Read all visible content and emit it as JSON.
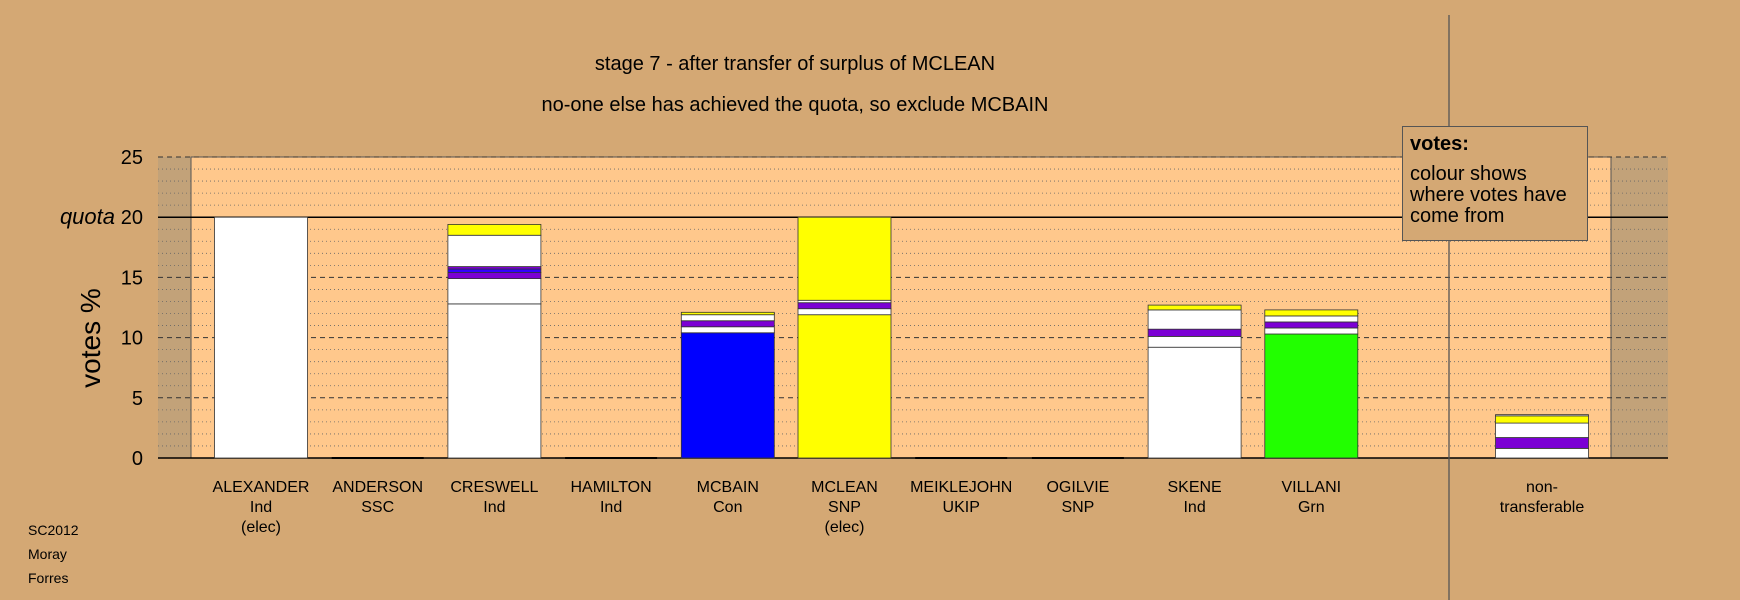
{
  "chart_data": {
    "type": "bar",
    "title": "stage 7 - after transfer of surplus of MCLEAN",
    "subtitle": "no-one else has achieved the quota, so exclude MCBAIN",
    "ylabel": "votes %",
    "quota_label": "quota",
    "quota": 20,
    "ylim": [
      0,
      25
    ],
    "yticks": [
      0,
      5,
      10,
      15,
      20,
      25
    ],
    "stacked": true,
    "candidates": [
      {
        "name": "ALEXANDER",
        "party": "Ind",
        "status": "(elec)",
        "segments": [
          {
            "color": "#FFFFFF",
            "value": 20.0
          }
        ]
      },
      {
        "name": "ANDERSON",
        "party": "SSC",
        "status": "",
        "segments": []
      },
      {
        "name": "CRESWELL",
        "party": "Ind",
        "status": "",
        "segments": [
          {
            "color": "#FFFFFF",
            "value": 12.8
          },
          {
            "color": "#FFFFFF",
            "value": 2.1
          },
          {
            "color": "#7B00D4",
            "value": 0.5
          },
          {
            "color": "#3300FF",
            "value": 0.3
          },
          {
            "color": "#7B00D4",
            "value": 0.2
          },
          {
            "color": "#FFFFFF",
            "value": 2.6
          },
          {
            "color": "#FFFF00",
            "value": 0.9
          }
        ]
      },
      {
        "name": "HAMILTON",
        "party": "Ind",
        "status": "",
        "segments": []
      },
      {
        "name": "MCBAIN",
        "party": "Con",
        "status": "",
        "segments": [
          {
            "color": "#0000FF",
            "value": 10.4
          },
          {
            "color": "#FFFFFF",
            "value": 0.5
          },
          {
            "color": "#7B00D4",
            "value": 0.5
          },
          {
            "color": "#FFFFFF",
            "value": 0.5
          },
          {
            "color": "#FFFF00",
            "value": 0.2
          }
        ]
      },
      {
        "name": "MCLEAN",
        "party": "SNP",
        "status": "(elec)",
        "segments": [
          {
            "color": "#FFFF00",
            "value": 11.9
          },
          {
            "color": "#FFFFFF",
            "value": 0.5
          },
          {
            "color": "#7B00D4",
            "value": 0.5
          },
          {
            "color": "#FFFFFF",
            "value": 0.2
          },
          {
            "color": "#FFFF00",
            "value": 6.9
          }
        ]
      },
      {
        "name": "MEIKLEJOHN",
        "party": "UKIP",
        "status": "",
        "segments": []
      },
      {
        "name": "OGILVIE",
        "party": "SNP",
        "status": "",
        "segments": []
      },
      {
        "name": "SKENE",
        "party": "Ind",
        "status": "",
        "segments": [
          {
            "color": "#FFFFFF",
            "value": 9.2
          },
          {
            "color": "#FFFFFF",
            "value": 0.9
          },
          {
            "color": "#7B00D4",
            "value": 0.6
          },
          {
            "color": "#FFFFFF",
            "value": 1.6
          },
          {
            "color": "#FFFF00",
            "value": 0.4
          }
        ]
      },
      {
        "name": "VILLANI",
        "party": "Grn",
        "status": "",
        "segments": [
          {
            "color": "#22FF00",
            "value": 10.3
          },
          {
            "color": "#FFFFFF",
            "value": 0.5
          },
          {
            "color": "#7B00D4",
            "value": 0.5
          },
          {
            "color": "#FFFFFF",
            "value": 0.5
          },
          {
            "color": "#FFFF00",
            "value": 0.5
          }
        ]
      }
    ],
    "nontransferable": {
      "label": "non-transferable",
      "segments": [
        {
          "color": "#FFFFFF",
          "value": 0.8
        },
        {
          "color": "#7B00D4",
          "value": 0.9
        },
        {
          "color": "#FFFFFF",
          "value": 1.2
        },
        {
          "color": "#FFFF00",
          "value": 0.6
        },
        {
          "color": "#FFFFFF",
          "value": 0.1
        }
      ]
    }
  },
  "legend": {
    "title": "votes:",
    "text": "colour shows where votes have come from"
  },
  "footer": [
    "SC2012",
    "Moray",
    "Forres"
  ],
  "colors": {
    "background": "#D4A874",
    "plot_area": "#FFC88C",
    "shade": "#C2A279"
  }
}
